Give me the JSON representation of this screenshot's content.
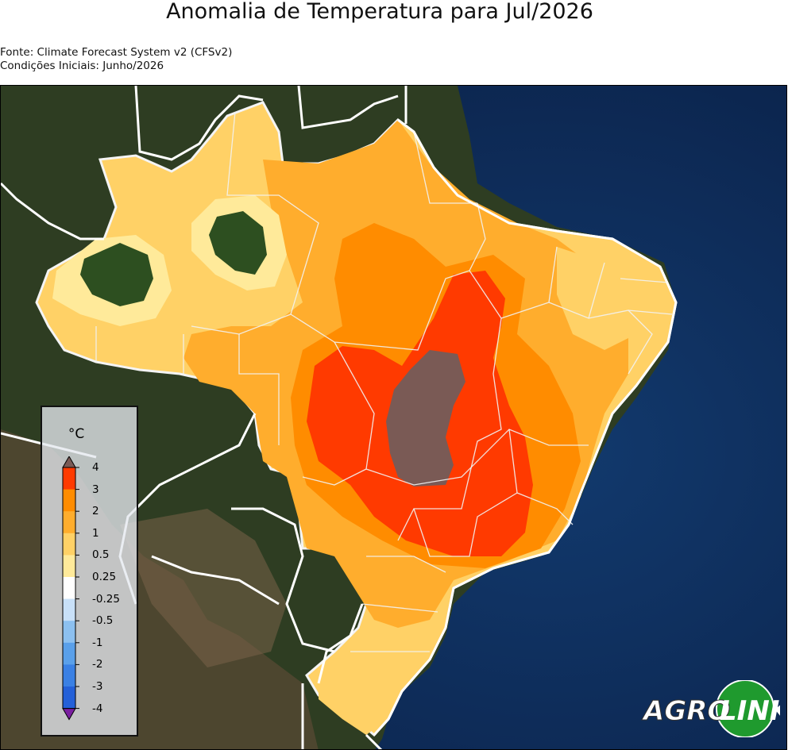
{
  "title": "Anomalia de Temperatura para Jul/2026",
  "source": "Fonte: Climate Forecast System v2 (CFSv2)",
  "initial_conditions": "Condições Iniciais: Junho/2026",
  "legend": {
    "unit": "°C",
    "labels": [
      "4",
      "3",
      "2",
      "1",
      "0.5",
      "0.25",
      "-0.25",
      "-0.5",
      "-1",
      "-2",
      "-3",
      "-4"
    ],
    "bins": [
      {
        "range": "3 a 4",
        "color": "#ff3a00"
      },
      {
        "range": "2 a 3",
        "color": "#ff8c00"
      },
      {
        "range": "1 a 2",
        "color": "#ffad2d"
      },
      {
        "range": "0.5 a 1",
        "color": "#ffd166"
      },
      {
        "range": "0.25 a 0.5",
        "color": "#ffea9a"
      },
      {
        "range": "-0.25 a 0.25",
        "color": "#ffffff"
      },
      {
        "range": "-0.5 a -0.25",
        "color": "#c8e0f8"
      },
      {
        "range": "-1 a -0.5",
        "color": "#8cc0f0"
      },
      {
        "range": "-2 a -1",
        "color": "#5aa0ea"
      },
      {
        "range": "-3 a -2",
        "color": "#3a80e4"
      },
      {
        "range": "-4 a -3",
        "color": "#2460d8"
      }
    ],
    "over_color": "#7a5a55",
    "under_color": "#7a1fa0"
  },
  "logo": {
    "part1": "AGRO",
    "part2": "LINK"
  }
}
